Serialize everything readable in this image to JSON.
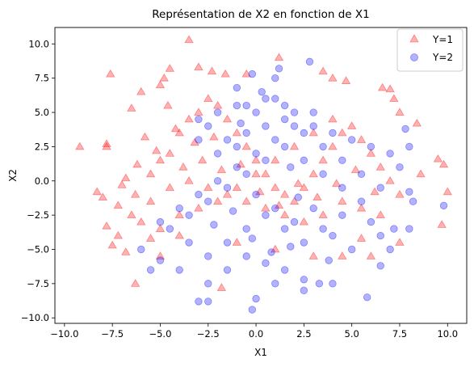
{
  "chart_data": {
    "type": "scatter",
    "title": "Représentation de X2 en fonction de X1",
    "xlabel": "X1",
    "ylabel": "X2",
    "xlim": [
      -10.5,
      11.0
    ],
    "ylim": [
      -10.4,
      11.2
    ],
    "x_ticks": [
      -10.0,
      -7.5,
      -5.0,
      -2.5,
      0.0,
      2.5,
      5.0,
      7.5,
      10.0
    ],
    "x_tick_labels": [
      "−10.0",
      "−7.5",
      "−5.0",
      "−2.5",
      "0.0",
      "2.5",
      "5.0",
      "7.5",
      "10.0"
    ],
    "y_ticks": [
      -10.0,
      -7.5,
      -5.0,
      -2.5,
      0.0,
      2.5,
      5.0,
      7.5,
      10.0
    ],
    "y_tick_labels": [
      "−10.0",
      "−7.5",
      "−5.0",
      "−2.5",
      "0.0",
      "2.5",
      "5.0",
      "7.5",
      "10.0"
    ],
    "grid": false,
    "legend_position": "top-right",
    "series": [
      {
        "name": "Y=1",
        "marker": "triangle",
        "color": "#ff0000",
        "points": [
          [
            -9.2,
            2.5
          ],
          [
            -7.8,
            2.7
          ],
          [
            -7.8,
            2.5
          ],
          [
            -7.6,
            7.8
          ],
          [
            -6.0,
            6.5
          ],
          [
            -5.8,
            3.2
          ],
          [
            -6.5,
            5.3
          ],
          [
            -6.3,
            -7.5
          ],
          [
            -6.8,
            -5.2
          ],
          [
            -7.2,
            -4.0
          ],
          [
            -7.5,
            -4.7
          ],
          [
            -7.8,
            -3.3
          ],
          [
            -8.3,
            -0.8
          ],
          [
            -8.0,
            -1.2
          ],
          [
            -7.0,
            -0.3
          ],
          [
            -5.0,
            7.0
          ],
          [
            -4.5,
            8.2
          ],
          [
            -4.8,
            7.5
          ],
          [
            -4.6,
            5.5
          ],
          [
            -3.5,
            10.3
          ],
          [
            -3.0,
            8.3
          ],
          [
            -2.3,
            8.0
          ],
          [
            -1.6,
            7.8
          ],
          [
            -0.5,
            7.8
          ],
          [
            1.2,
            9.0
          ],
          [
            3.5,
            8.0
          ],
          [
            4.0,
            7.5
          ],
          [
            4.7,
            7.3
          ],
          [
            6.6,
            6.8
          ],
          [
            7.0,
            6.7
          ],
          [
            7.2,
            6.0
          ],
          [
            7.5,
            5.0
          ],
          [
            8.4,
            4.2
          ],
          [
            8.6,
            0.5
          ],
          [
            9.5,
            1.6
          ],
          [
            10.0,
            -0.8
          ],
          [
            9.8,
            1.2
          ],
          [
            9.7,
            -3.2
          ],
          [
            7.5,
            -4.5
          ],
          [
            5.5,
            -4.2
          ],
          [
            6.0,
            -5.5
          ],
          [
            4.5,
            -5.5
          ],
          [
            3.0,
            -5.5
          ],
          [
            1.0,
            -5.0
          ],
          [
            -1.0,
            -4.5
          ],
          [
            -1.8,
            -7.8
          ],
          [
            -5.0,
            -5.5
          ],
          [
            -5.5,
            -4.2
          ],
          [
            -4.0,
            -4.0
          ],
          [
            -6.5,
            -2.5
          ],
          [
            -6.3,
            -1.0
          ],
          [
            -5.5,
            0.5
          ],
          [
            -5.0,
            1.5
          ],
          [
            -4.5,
            2.0
          ],
          [
            -4.0,
            3.5
          ],
          [
            -3.5,
            4.5
          ],
          [
            -3.0,
            5.0
          ],
          [
            -2.5,
            6.0
          ],
          [
            -2.0,
            5.5
          ],
          [
            -1.5,
            4.5
          ],
          [
            -1.0,
            3.5
          ],
          [
            -0.5,
            2.5
          ],
          [
            0.0,
            1.5
          ],
          [
            0.5,
            0.5
          ],
          [
            1.0,
            -0.5
          ],
          [
            1.5,
            -1.0
          ],
          [
            2.0,
            -1.5
          ],
          [
            2.5,
            -0.5
          ],
          [
            3.0,
            0.5
          ],
          [
            3.5,
            1.5
          ],
          [
            4.0,
            2.5
          ],
          [
            4.5,
            3.5
          ],
          [
            5.0,
            4.0
          ],
          [
            5.5,
            3.0
          ],
          [
            6.0,
            2.0
          ],
          [
            6.5,
            1.0
          ],
          [
            7.0,
            0.0
          ],
          [
            7.5,
            -1.0
          ],
          [
            6.5,
            -2.5
          ],
          [
            5.5,
            -2.0
          ],
          [
            4.5,
            -1.5
          ],
          [
            3.5,
            -2.5
          ],
          [
            2.5,
            -3.0
          ],
          [
            1.5,
            -2.5
          ],
          [
            0.5,
            -2.0
          ],
          [
            -0.5,
            -1.5
          ],
          [
            -1.5,
            -1.0
          ],
          [
            -2.5,
            -0.5
          ],
          [
            -3.5,
            0.0
          ],
          [
            -4.5,
            -0.5
          ],
          [
            -5.5,
            -1.5
          ],
          [
            -6.0,
            -3.0
          ],
          [
            -5.0,
            -3.5
          ],
          [
            -4.0,
            -2.5
          ],
          [
            -3.0,
            -2.0
          ],
          [
            -2.0,
            -1.5
          ],
          [
            -1.0,
            -0.5
          ],
          [
            0.0,
            0.5
          ],
          [
            1.0,
            1.5
          ],
          [
            2.0,
            2.5
          ],
          [
            3.0,
            3.5
          ],
          [
            4.0,
            4.5
          ],
          [
            -3.8,
            1.0
          ],
          [
            -2.8,
            1.5
          ],
          [
            -1.8,
            0.8
          ],
          [
            -0.8,
            1.2
          ],
          [
            0.2,
            -0.8
          ],
          [
            1.2,
            -1.8
          ],
          [
            2.2,
            -0.2
          ],
          [
            3.2,
            -1.2
          ],
          [
            4.2,
            -0.2
          ],
          [
            5.2,
            0.8
          ],
          [
            6.2,
            -0.8
          ],
          [
            -2.2,
            3.2
          ],
          [
            -3.2,
            2.8
          ],
          [
            -4.2,
            3.8
          ],
          [
            -5.2,
            2.2
          ],
          [
            -6.2,
            1.2
          ],
          [
            -7.2,
            -1.8
          ],
          [
            -6.8,
            0.2
          ]
        ]
      },
      {
        "name": "Y=2",
        "marker": "circle",
        "color": "#0000ff",
        "points": [
          [
            2.8,
            8.7
          ],
          [
            1.2,
            8.2
          ],
          [
            1.0,
            7.5
          ],
          [
            -0.2,
            7.8
          ],
          [
            -1.0,
            6.8
          ],
          [
            0.5,
            6.0
          ],
          [
            -0.5,
            5.5
          ],
          [
            1.5,
            5.5
          ],
          [
            2.0,
            5.0
          ],
          [
            -2.0,
            5.0
          ],
          [
            -3.0,
            4.5
          ],
          [
            3.0,
            4.0
          ],
          [
            4.0,
            3.5
          ],
          [
            5.0,
            3.0
          ],
          [
            6.0,
            2.5
          ],
          [
            7.0,
            2.0
          ],
          [
            7.8,
            3.8
          ],
          [
            8.0,
            2.5
          ],
          [
            7.5,
            1.0
          ],
          [
            8.2,
            -1.5
          ],
          [
            8.0,
            -0.8
          ],
          [
            9.8,
            -1.8
          ],
          [
            8.0,
            -3.5
          ],
          [
            7.2,
            -3.5
          ],
          [
            6.5,
            -4.0
          ],
          [
            7.0,
            -5.0
          ],
          [
            6.5,
            -6.2
          ],
          [
            5.8,
            -8.5
          ],
          [
            4.0,
            -7.5
          ],
          [
            3.3,
            -7.5
          ],
          [
            2.5,
            -7.2
          ],
          [
            1.5,
            -6.5
          ],
          [
            0.5,
            -6.0
          ],
          [
            -0.5,
            -5.5
          ],
          [
            -1.5,
            -6.5
          ],
          [
            -2.5,
            -7.5
          ],
          [
            -2.5,
            -8.8
          ],
          [
            -3.0,
            -8.8
          ],
          [
            0.0,
            -8.6
          ],
          [
            -0.2,
            -9.4
          ],
          [
            1.0,
            -7.5
          ],
          [
            2.5,
            -8.0
          ],
          [
            -4.0,
            -6.5
          ],
          [
            -5.0,
            -5.8
          ],
          [
            -5.5,
            -6.5
          ],
          [
            -6.0,
            -5.0
          ],
          [
            -5.0,
            -3.0
          ],
          [
            -4.0,
            -2.0
          ],
          [
            -3.0,
            -1.0
          ],
          [
            -2.0,
            0.0
          ],
          [
            -1.0,
            1.0
          ],
          [
            0.0,
            2.0
          ],
          [
            1.0,
            3.0
          ],
          [
            2.0,
            4.0
          ],
          [
            3.0,
            5.0
          ],
          [
            -1.5,
            3.0
          ],
          [
            -0.5,
            3.5
          ],
          [
            0.5,
            4.0
          ],
          [
            1.5,
            4.5
          ],
          [
            2.5,
            3.5
          ],
          [
            3.5,
            2.5
          ],
          [
            4.5,
            1.5
          ],
          [
            5.5,
            0.5
          ],
          [
            6.5,
            -0.5
          ],
          [
            5.5,
            -1.5
          ],
          [
            4.5,
            -2.5
          ],
          [
            3.5,
            -3.5
          ],
          [
            2.5,
            -4.5
          ],
          [
            1.5,
            -3.5
          ],
          [
            0.5,
            -2.5
          ],
          [
            -0.5,
            -3.5
          ],
          [
            -1.5,
            -4.5
          ],
          [
            -2.5,
            -5.5
          ],
          [
            -3.5,
            -4.5
          ],
          [
            -4.5,
            -3.5
          ],
          [
            -3.5,
            -2.5
          ],
          [
            -2.5,
            -1.5
          ],
          [
            -1.5,
            -0.5
          ],
          [
            -0.5,
            0.5
          ],
          [
            0.5,
            1.5
          ],
          [
            1.5,
            2.5
          ],
          [
            2.5,
            1.5
          ],
          [
            3.5,
            0.5
          ],
          [
            4.5,
            -0.5
          ],
          [
            -2.0,
            2.0
          ],
          [
            -1.0,
            2.5
          ],
          [
            0.0,
            -1.0
          ],
          [
            1.0,
            -2.0
          ],
          [
            2.0,
            -3.0
          ],
          [
            3.0,
            -2.0
          ],
          [
            4.0,
            -4.0
          ],
          [
            5.0,
            -5.0
          ],
          [
            6.0,
            -3.0
          ],
          [
            -3.0,
            3.0
          ],
          [
            -2.5,
            4.0
          ],
          [
            0.0,
            5.0
          ],
          [
            1.0,
            6.0
          ],
          [
            -1.0,
            5.5
          ],
          [
            0.3,
            6.5
          ],
          [
            -0.8,
            4.2
          ],
          [
            1.8,
            1.0
          ],
          [
            2.2,
            -1.2
          ],
          [
            -1.2,
            -2.2
          ],
          [
            -2.2,
            -3.2
          ],
          [
            -0.2,
            -4.2
          ],
          [
            0.8,
            -5.2
          ],
          [
            1.8,
            -4.8
          ],
          [
            3.8,
            -5.8
          ]
        ]
      }
    ]
  }
}
